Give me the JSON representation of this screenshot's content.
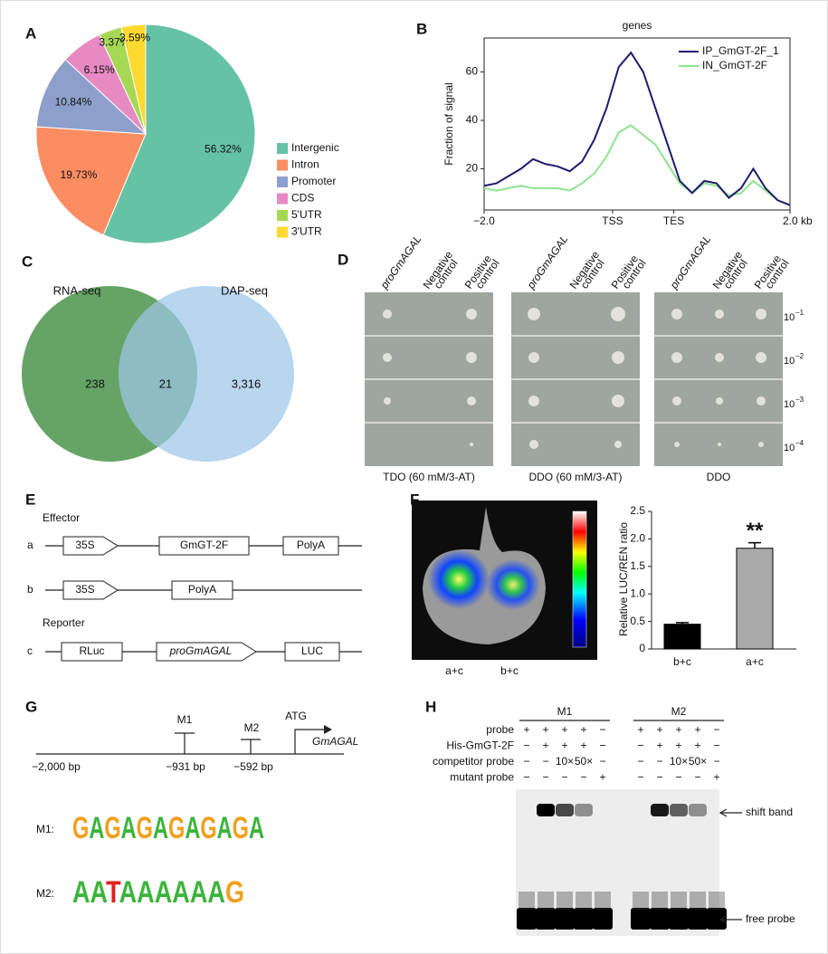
{
  "panel_labels": [
    "A",
    "B",
    "C",
    "D",
    "E",
    "F",
    "G",
    "H"
  ],
  "chart_data": [
    {
      "type": "pie",
      "categories": [
        "Intergenic",
        "Intron",
        "Promoter",
        "CDS",
        "5'UTR",
        "3'UTR"
      ],
      "values": [
        56.32,
        19.73,
        10.84,
        6.15,
        3.37,
        3.59
      ],
      "value_labels": [
        "56.32%",
        "19.73%",
        "10.84%",
        "6.15%",
        "3.37%",
        "3.59%"
      ],
      "colors": [
        "#66c2a5",
        "#fc8d62",
        "#8da0cb",
        "#e78ac3",
        "#a6d854",
        "#ffd92f"
      ],
      "legend": "right"
    },
    {
      "type": "line",
      "title": "genes",
      "y_label": "Fraction of signal",
      "x": [
        0,
        4,
        8,
        12,
        16,
        20,
        24,
        28,
        32,
        36,
        40,
        44,
        48,
        52,
        56,
        60,
        64,
        68,
        72,
        76,
        80,
        84,
        88,
        92,
        96,
        100
      ],
      "xlim": [
        0,
        100
      ],
      "xticks": [
        {
          "value": 0,
          "label": "−2.0"
        },
        {
          "value": 42,
          "label": "TSS"
        },
        {
          "value": 62,
          "label": "TES"
        },
        {
          "value": 100,
          "label": "2.0 kb"
        }
      ],
      "ylim": [
        3,
        74
      ],
      "yticks": [
        20,
        40,
        60
      ],
      "legend": "upper right",
      "series": [
        {
          "name": "IP_GmGT-2F_1",
          "color": "#1c1c6e",
          "values": [
            13,
            14,
            17,
            20,
            24,
            22,
            21,
            19,
            23,
            32,
            45,
            62,
            68,
            60,
            45,
            30,
            15,
            10,
            15,
            14,
            8,
            12,
            20,
            12,
            7,
            5
          ]
        },
        {
          "name": "IN_GmGT-2F",
          "color": "#8fe38f",
          "values": [
            12,
            11,
            12,
            13,
            12,
            12,
            12,
            11,
            14,
            18,
            25,
            35,
            38,
            34,
            30,
            22,
            14,
            10,
            14,
            13,
            9,
            10,
            15,
            11,
            7,
            5
          ]
        }
      ]
    },
    {
      "type": "bar",
      "y_label": "Relative LUC/REN ratio",
      "categories": [
        "b+c",
        "a+c"
      ],
      "values": [
        0.45,
        1.83
      ],
      "errors": [
        0.03,
        0.1
      ],
      "colors": [
        "#000000",
        "#aaaaaa"
      ],
      "annotations": [
        "**"
      ],
      "ylim": [
        0,
        2.5
      ],
      "yticks": [
        0,
        0.5,
        {
          "value": 1,
          "label": "1.0"
        },
        1.5,
        {
          "value": 2,
          "label": "2.0"
        },
        2.5
      ]
    }
  ],
  "venn": {
    "left": "RNA-seq",
    "right": "DAP-seq",
    "left_only": "238",
    "both": "21",
    "right_only": "3,316"
  },
  "yeast": {
    "columns": [
      [
        "proGmAGAL"
      ],
      [
        "Negative",
        "control"
      ],
      [
        "Positive",
        "control"
      ]
    ],
    "media": [
      "TDO (60 mM/3-AT)",
      "DDO (60 mM/3-AT)",
      "DDO"
    ],
    "dilutions": [
      {
        "base": "10",
        "exp": "−1"
      },
      {
        "base": "10",
        "exp": "−2"
      },
      {
        "base": "10",
        "exp": "−3"
      },
      {
        "base": "10",
        "exp": "−4"
      }
    ]
  },
  "constructs": {
    "effector": "Effector",
    "reporter": "Reporter",
    "a": {
      "label": "a",
      "parts": [
        "35S",
        "GmGT-2F",
        "PolyA"
      ]
    },
    "b": {
      "label": "b",
      "parts": [
        "35S",
        "PolyA"
      ]
    },
    "c": {
      "label": "c",
      "parts": [
        "RLuc",
        "proGmAGAL",
        "LUC"
      ]
    }
  },
  "leaf": {
    "labels": [
      "a+c",
      "b+c"
    ]
  },
  "promoter": {
    "m1": "M1",
    "m2": "M2",
    "atg": "ATG",
    "gene": "GmAGAL",
    "start": "−2,000 bp",
    "m1_pos": "−931 bp",
    "m2_pos": "−592 bp"
  },
  "motifs": [
    {
      "label": "M1:",
      "sequence": "GAGAGAGAGAGA"
    },
    {
      "label": "M2:",
      "sequence": "AATAAAAAAG"
    }
  ],
  "emsa": {
    "groups": [
      "M1",
      "M2"
    ],
    "rows": [
      {
        "label": "probe",
        "cells": [
          "+",
          "+",
          "+",
          "+",
          "−",
          "+",
          "+",
          "+",
          "+",
          "−"
        ]
      },
      {
        "label": "His-GmGT-2F",
        "cells": [
          "−",
          "+",
          "+",
          "+",
          "−",
          "−",
          "+",
          "+",
          "+",
          "−"
        ]
      },
      {
        "label": "competitor probe",
        "cells": [
          "−",
          "−",
          "10×",
          "50×",
          "−",
          "−",
          "−",
          "10×",
          "50×",
          "−"
        ]
      },
      {
        "label": "mutant probe",
        "cells": [
          "−",
          "−",
          "−",
          "−",
          "+",
          "−",
          "−",
          "−",
          "−",
          "+"
        ]
      }
    ],
    "shift": "shift band",
    "free": "free probe"
  }
}
